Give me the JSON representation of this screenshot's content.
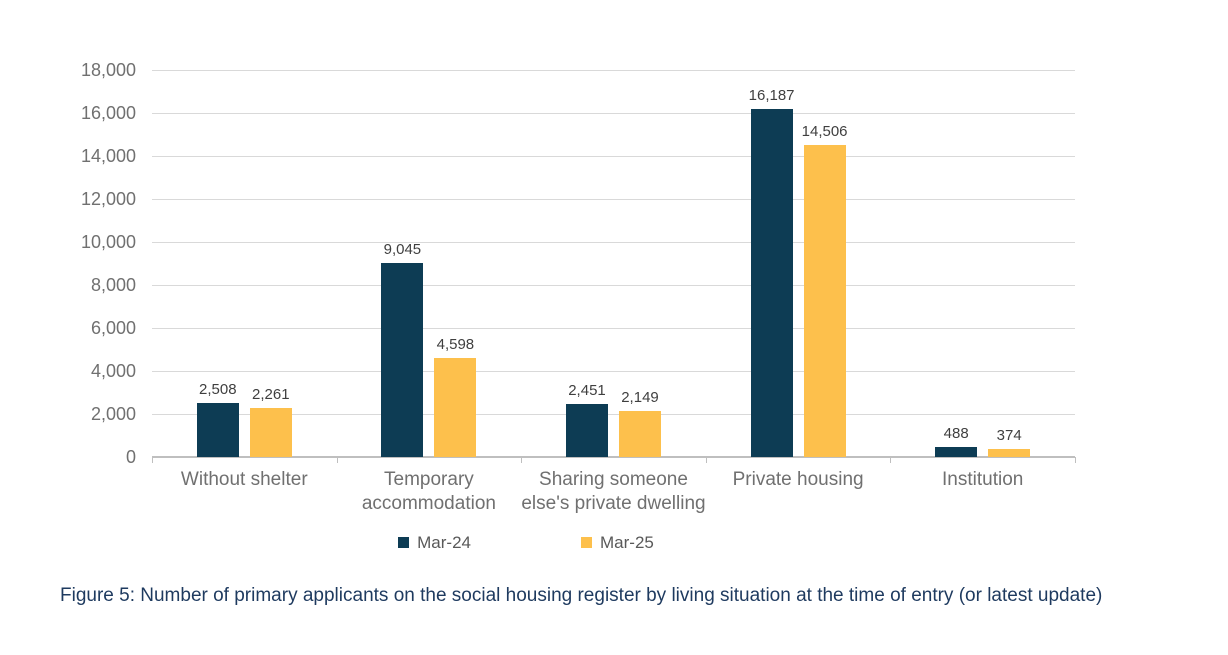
{
  "figure": {
    "caption": "Figure 5: Number of primary applicants on the social housing register by living situation at the time of entry (or latest update)"
  },
  "chart_data": {
    "type": "bar",
    "title": "",
    "xlabel": "",
    "ylabel": "",
    "categories": [
      "Without shelter",
      "Temporary accommodation",
      "Sharing someone else's private dwelling",
      "Private housing",
      "Institution"
    ],
    "series": [
      {
        "name": "Mar-24",
        "color": "#0d3c54",
        "values": [
          2508,
          9045,
          2451,
          16187,
          488
        ],
        "labels": [
          "2,508",
          "9,045",
          "2,451",
          "16,187",
          "488"
        ]
      },
      {
        "name": "Mar-25",
        "color": "#fdc04c",
        "values": [
          2261,
          4598,
          2149,
          14506,
          374
        ],
        "labels": [
          "2,261",
          "4,598",
          "2,149",
          "14,506",
          "374"
        ]
      }
    ],
    "ylim": [
      0,
      18000
    ],
    "ytick_step": 2000,
    "ytick_labels": [
      "0",
      "2,000",
      "4,000",
      "6,000",
      "8,000",
      "10,000",
      "12,000",
      "14,000",
      "16,000",
      "18,000"
    ],
    "grid": true,
    "legend_position": "bottom"
  },
  "colors": {
    "background": "#ffffff",
    "gridline": "#d9d9d9",
    "axis": "#bfbfbf",
    "ytick_label": "#707070",
    "category_label": "#707070",
    "data_label": "#3f3f3f",
    "legend_text": "#595959",
    "caption_text": "#1e3a5f"
  }
}
